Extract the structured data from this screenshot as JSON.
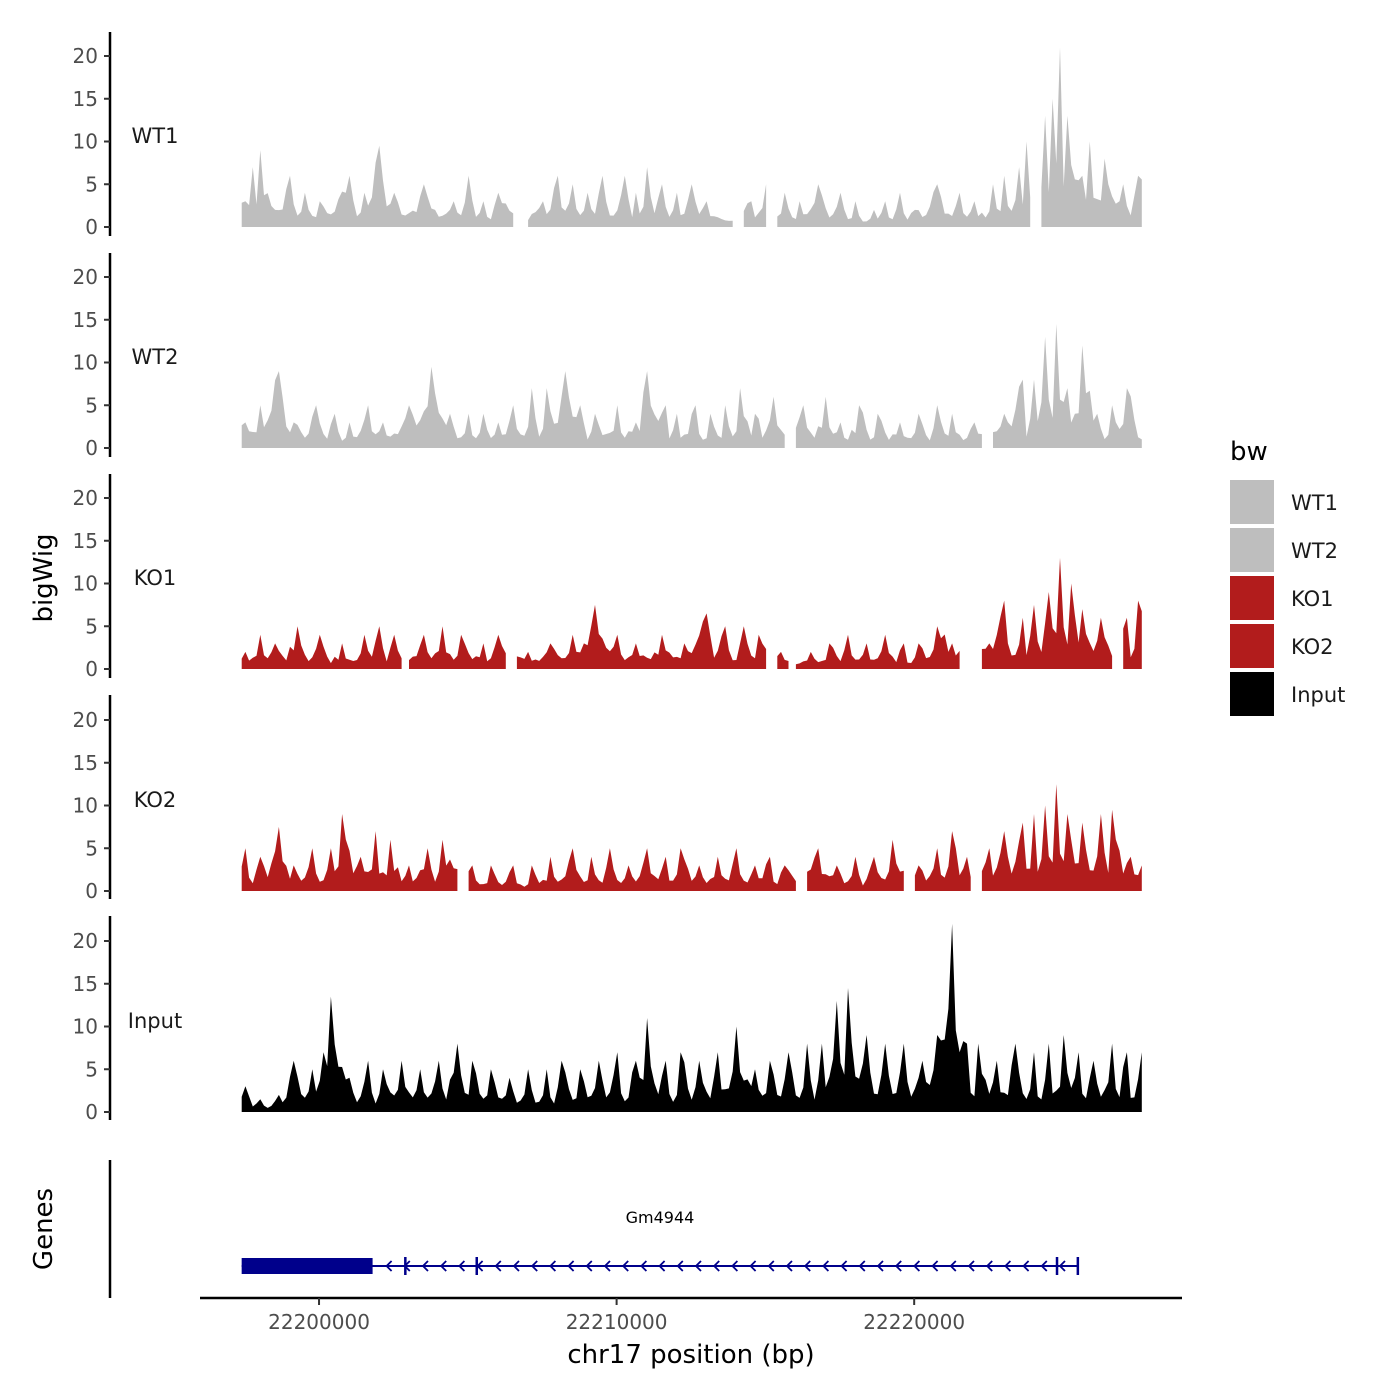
{
  "chart_data": {
    "type": "area",
    "ylabel": "bigWig",
    "xlabel": "chr17 position (bp)",
    "ylim": [
      0,
      23
    ],
    "yticks": [
      0,
      5,
      10,
      15,
      20
    ],
    "xlim": [
      22196000,
      22229000
    ],
    "xticks": [
      22200000,
      22210000,
      22220000
    ],
    "x_start": 22197400,
    "x_end": 22227700,
    "step": 125,
    "legend": {
      "title": "bw",
      "position": "right",
      "entries": [
        {
          "label": "WT1",
          "color": "#bebebe"
        },
        {
          "label": "WT2",
          "color": "#bebebe"
        },
        {
          "label": "KO1",
          "color": "#b21c1c"
        },
        {
          "label": "KO2",
          "color": "#b21c1c"
        },
        {
          "label": "Input",
          "color": "#000000"
        }
      ]
    },
    "series": [
      {
        "name": "WT1",
        "color": "#bebebe",
        "gaps": [
          [
            22206600,
            22207000
          ],
          [
            22214000,
            22214200
          ],
          [
            22215100,
            22215300
          ],
          [
            22224000,
            22224200
          ]
        ],
        "peaks": [
          [
            22197500,
            3
          ],
          [
            22197800,
            7
          ],
          [
            22198000,
            9
          ],
          [
            22198500,
            2
          ],
          [
            22199000,
            6
          ],
          [
            22199500,
            4
          ],
          [
            22200000,
            3
          ],
          [
            22201000,
            6
          ],
          [
            22201500,
            4
          ],
          [
            22202000,
            9.5
          ],
          [
            22202500,
            4
          ],
          [
            22203500,
            5
          ],
          [
            22204500,
            3
          ],
          [
            22205000,
            6
          ],
          [
            22205500,
            3
          ],
          [
            22206000,
            4
          ],
          [
            22207500,
            3
          ],
          [
            22208000,
            6
          ],
          [
            22208500,
            5
          ],
          [
            22209000,
            4
          ],
          [
            22209500,
            6
          ],
          [
            22210300,
            6
          ],
          [
            22210700,
            4
          ],
          [
            22211000,
            7
          ],
          [
            22211500,
            5
          ],
          [
            22212000,
            4
          ],
          [
            22212500,
            5
          ],
          [
            22213000,
            3
          ],
          [
            22214500,
            3
          ],
          [
            22215000,
            5
          ],
          [
            22215700,
            4
          ],
          [
            22216200,
            3
          ],
          [
            22216800,
            5
          ],
          [
            22217500,
            4
          ],
          [
            22218000,
            3
          ],
          [
            22218600,
            2
          ],
          [
            22219000,
            3
          ],
          [
            22219500,
            4
          ],
          [
            22220000,
            2
          ],
          [
            22220800,
            5
          ],
          [
            22221500,
            4
          ],
          [
            22222000,
            3
          ],
          [
            22222700,
            5
          ],
          [
            22223000,
            6
          ],
          [
            22223500,
            7
          ],
          [
            22223800,
            10
          ],
          [
            22224200,
            10
          ],
          [
            22224400,
            13
          ],
          [
            22224700,
            15
          ],
          [
            22224900,
            21
          ],
          [
            22225200,
            13
          ],
          [
            22225600,
            6
          ],
          [
            22225900,
            10
          ],
          [
            22226400,
            8
          ],
          [
            22227000,
            5
          ],
          [
            22227500,
            6
          ]
        ]
      },
      {
        "name": "WT2",
        "color": "#bebebe",
        "gaps": [
          [
            22215700,
            22215900
          ],
          [
            22222400,
            22222600
          ]
        ],
        "peaks": [
          [
            22197500,
            3
          ],
          [
            22198000,
            5
          ],
          [
            22198600,
            9
          ],
          [
            22199200,
            3
          ],
          [
            22199900,
            5
          ],
          [
            22200500,
            4
          ],
          [
            22201000,
            3
          ],
          [
            22201600,
            5
          ],
          [
            22202200,
            3
          ],
          [
            22203000,
            5
          ],
          [
            22203800,
            9.5
          ],
          [
            22204400,
            4
          ],
          [
            22205000,
            4
          ],
          [
            22205500,
            4
          ],
          [
            22206000,
            3
          ],
          [
            22206500,
            5
          ],
          [
            22207200,
            7
          ],
          [
            22207600,
            7
          ],
          [
            22208300,
            9
          ],
          [
            22208800,
            5
          ],
          [
            22209300,
            4
          ],
          [
            22210000,
            5
          ],
          [
            22210600,
            3
          ],
          [
            22211000,
            9
          ],
          [
            22211600,
            5
          ],
          [
            22212000,
            4
          ],
          [
            22212600,
            5
          ],
          [
            22213200,
            4
          ],
          [
            22213700,
            5
          ],
          [
            22214200,
            7
          ],
          [
            22214700,
            4
          ],
          [
            22215300,
            6
          ],
          [
            22216300,
            5
          ],
          [
            22217000,
            6
          ],
          [
            22217500,
            3
          ],
          [
            22218200,
            5
          ],
          [
            22218800,
            4
          ],
          [
            22219500,
            3
          ],
          [
            22220200,
            4
          ],
          [
            22220800,
            5
          ],
          [
            22221300,
            4
          ],
          [
            22222000,
            3
          ],
          [
            22223000,
            4
          ],
          [
            22223600,
            8
          ],
          [
            22224000,
            8
          ],
          [
            22224400,
            13
          ],
          [
            22224800,
            14.5
          ],
          [
            22225200,
            7
          ],
          [
            22225700,
            12
          ],
          [
            22226200,
            4
          ],
          [
            22226700,
            5
          ],
          [
            22227200,
            7
          ],
          [
            22227600,
            1
          ]
        ]
      },
      {
        "name": "KO1",
        "color": "#b21c1c",
        "gaps": [
          [
            22202800,
            22203000
          ],
          [
            22206400,
            22206600
          ],
          [
            22215100,
            22215300
          ],
          [
            22215800,
            22216000
          ],
          [
            22221600,
            22222200
          ],
          [
            22226700,
            22226900
          ]
        ],
        "peaks": [
          [
            22197500,
            2
          ],
          [
            22198000,
            4
          ],
          [
            22198500,
            3
          ],
          [
            22199300,
            5
          ],
          [
            22200000,
            4
          ],
          [
            22200800,
            3
          ],
          [
            22201500,
            4
          ],
          [
            22202000,
            5
          ],
          [
            22202500,
            4
          ],
          [
            22203500,
            4
          ],
          [
            22204100,
            5
          ],
          [
            22204800,
            4
          ],
          [
            22205500,
            3
          ],
          [
            22206000,
            4
          ],
          [
            22207000,
            2
          ],
          [
            22207800,
            3
          ],
          [
            22208500,
            4
          ],
          [
            22209300,
            7.5
          ],
          [
            22210000,
            4
          ],
          [
            22210700,
            3
          ],
          [
            22211500,
            4
          ],
          [
            22212300,
            3
          ],
          [
            22213000,
            6.5
          ],
          [
            22213600,
            5
          ],
          [
            22214300,
            5
          ],
          [
            22214800,
            4
          ],
          [
            22215500,
            2
          ],
          [
            22216500,
            2
          ],
          [
            22217200,
            3
          ],
          [
            22217800,
            4
          ],
          [
            22218400,
            3
          ],
          [
            22219000,
            4
          ],
          [
            22219600,
            3
          ],
          [
            22220200,
            3
          ],
          [
            22220800,
            5
          ],
          [
            22222500,
            3
          ],
          [
            22223000,
            8
          ],
          [
            22223600,
            6
          ],
          [
            22224000,
            7.5
          ],
          [
            22224500,
            9
          ],
          [
            22224900,
            13
          ],
          [
            22225300,
            10
          ],
          [
            22225700,
            7
          ],
          [
            22226300,
            6
          ],
          [
            22227100,
            6
          ],
          [
            22227500,
            8
          ]
        ]
      },
      {
        "name": "KO2",
        "color": "#b21c1c",
        "gaps": [
          [
            22204700,
            22204900
          ],
          [
            22216100,
            22216300
          ],
          [
            22219700,
            22219900
          ],
          [
            22222000,
            22222200
          ]
        ],
        "peaks": [
          [
            22197500,
            5
          ],
          [
            22198000,
            4
          ],
          [
            22198600,
            7.5
          ],
          [
            22199200,
            3
          ],
          [
            22199800,
            5
          ],
          [
            22200400,
            5
          ],
          [
            22200800,
            9
          ],
          [
            22201400,
            4
          ],
          [
            22201900,
            7
          ],
          [
            22202400,
            6
          ],
          [
            22203000,
            3
          ],
          [
            22203600,
            5
          ],
          [
            22204200,
            6
          ],
          [
            22205200,
            3
          ],
          [
            22205800,
            3
          ],
          [
            22206500,
            3
          ],
          [
            22207200,
            3
          ],
          [
            22207800,
            4
          ],
          [
            22208500,
            5
          ],
          [
            22209200,
            4
          ],
          [
            22209800,
            5
          ],
          [
            22210400,
            3
          ],
          [
            22211000,
            5
          ],
          [
            22211600,
            4
          ],
          [
            22212200,
            5
          ],
          [
            22212800,
            3
          ],
          [
            22213400,
            4
          ],
          [
            22214000,
            5
          ],
          [
            22214600,
            3
          ],
          [
            22215100,
            4
          ],
          [
            22215600,
            3
          ],
          [
            22216800,
            5
          ],
          [
            22217400,
            3
          ],
          [
            22218000,
            4
          ],
          [
            22218600,
            4
          ],
          [
            22219300,
            6
          ],
          [
            22220200,
            3
          ],
          [
            22220800,
            5
          ],
          [
            22221300,
            7
          ],
          [
            22221800,
            4
          ],
          [
            22222500,
            5
          ],
          [
            22223000,
            7
          ],
          [
            22223600,
            8
          ],
          [
            22224000,
            9
          ],
          [
            22224400,
            10
          ],
          [
            22224800,
            12.5
          ],
          [
            22225200,
            9
          ],
          [
            22225700,
            8
          ],
          [
            22226300,
            9
          ],
          [
            22226700,
            9.5
          ],
          [
            22227300,
            4
          ],
          [
            22227600,
            3
          ]
        ]
      },
      {
        "name": "Input",
        "color": "#000000",
        "gaps": [],
        "peaks": [
          [
            22197500,
            3
          ],
          [
            22198000,
            1.5
          ],
          [
            22198600,
            2
          ],
          [
            22199200,
            6
          ],
          [
            22199800,
            5
          ],
          [
            22200100,
            7
          ],
          [
            22200400,
            13.5
          ],
          [
            22201000,
            4
          ],
          [
            22201600,
            6
          ],
          [
            22202200,
            5
          ],
          [
            22202800,
            6
          ],
          [
            22203400,
            5
          ],
          [
            22204000,
            6
          ],
          [
            22204600,
            8
          ],
          [
            22205200,
            6
          ],
          [
            22205800,
            5
          ],
          [
            22206400,
            4
          ],
          [
            22207000,
            5
          ],
          [
            22207600,
            5
          ],
          [
            22208200,
            6
          ],
          [
            22208800,
            5
          ],
          [
            22209400,
            6
          ],
          [
            22210000,
            7
          ],
          [
            22210600,
            6
          ],
          [
            22211000,
            11
          ],
          [
            22211600,
            6
          ],
          [
            22212200,
            7
          ],
          [
            22212800,
            6
          ],
          [
            22213400,
            7
          ],
          [
            22214000,
            10
          ],
          [
            22214600,
            5
          ],
          [
            22215200,
            6
          ],
          [
            22215800,
            7
          ],
          [
            22216400,
            8
          ],
          [
            22216900,
            8
          ],
          [
            22217400,
            13
          ],
          [
            22217800,
            14.5
          ],
          [
            22218400,
            9
          ],
          [
            22219000,
            8
          ],
          [
            22219600,
            8
          ],
          [
            22220300,
            6
          ],
          [
            22220800,
            9
          ],
          [
            22221300,
            22
          ],
          [
            22221800,
            8
          ],
          [
            22222200,
            8
          ],
          [
            22222800,
            6
          ],
          [
            22223400,
            8
          ],
          [
            22224000,
            7
          ],
          [
            22224500,
            8
          ],
          [
            22225000,
            9
          ],
          [
            22225500,
            7
          ],
          [
            22226000,
            6
          ],
          [
            22226600,
            8
          ],
          [
            22227100,
            7
          ],
          [
            22227600,
            7
          ]
        ]
      }
    ],
    "genes_track": {
      "label": "Genes",
      "gene_name": "Gm4944",
      "color": "#00008b",
      "start": 22197400,
      "end": 22225500,
      "thick_end": 22201800,
      "strand": "-"
    }
  }
}
